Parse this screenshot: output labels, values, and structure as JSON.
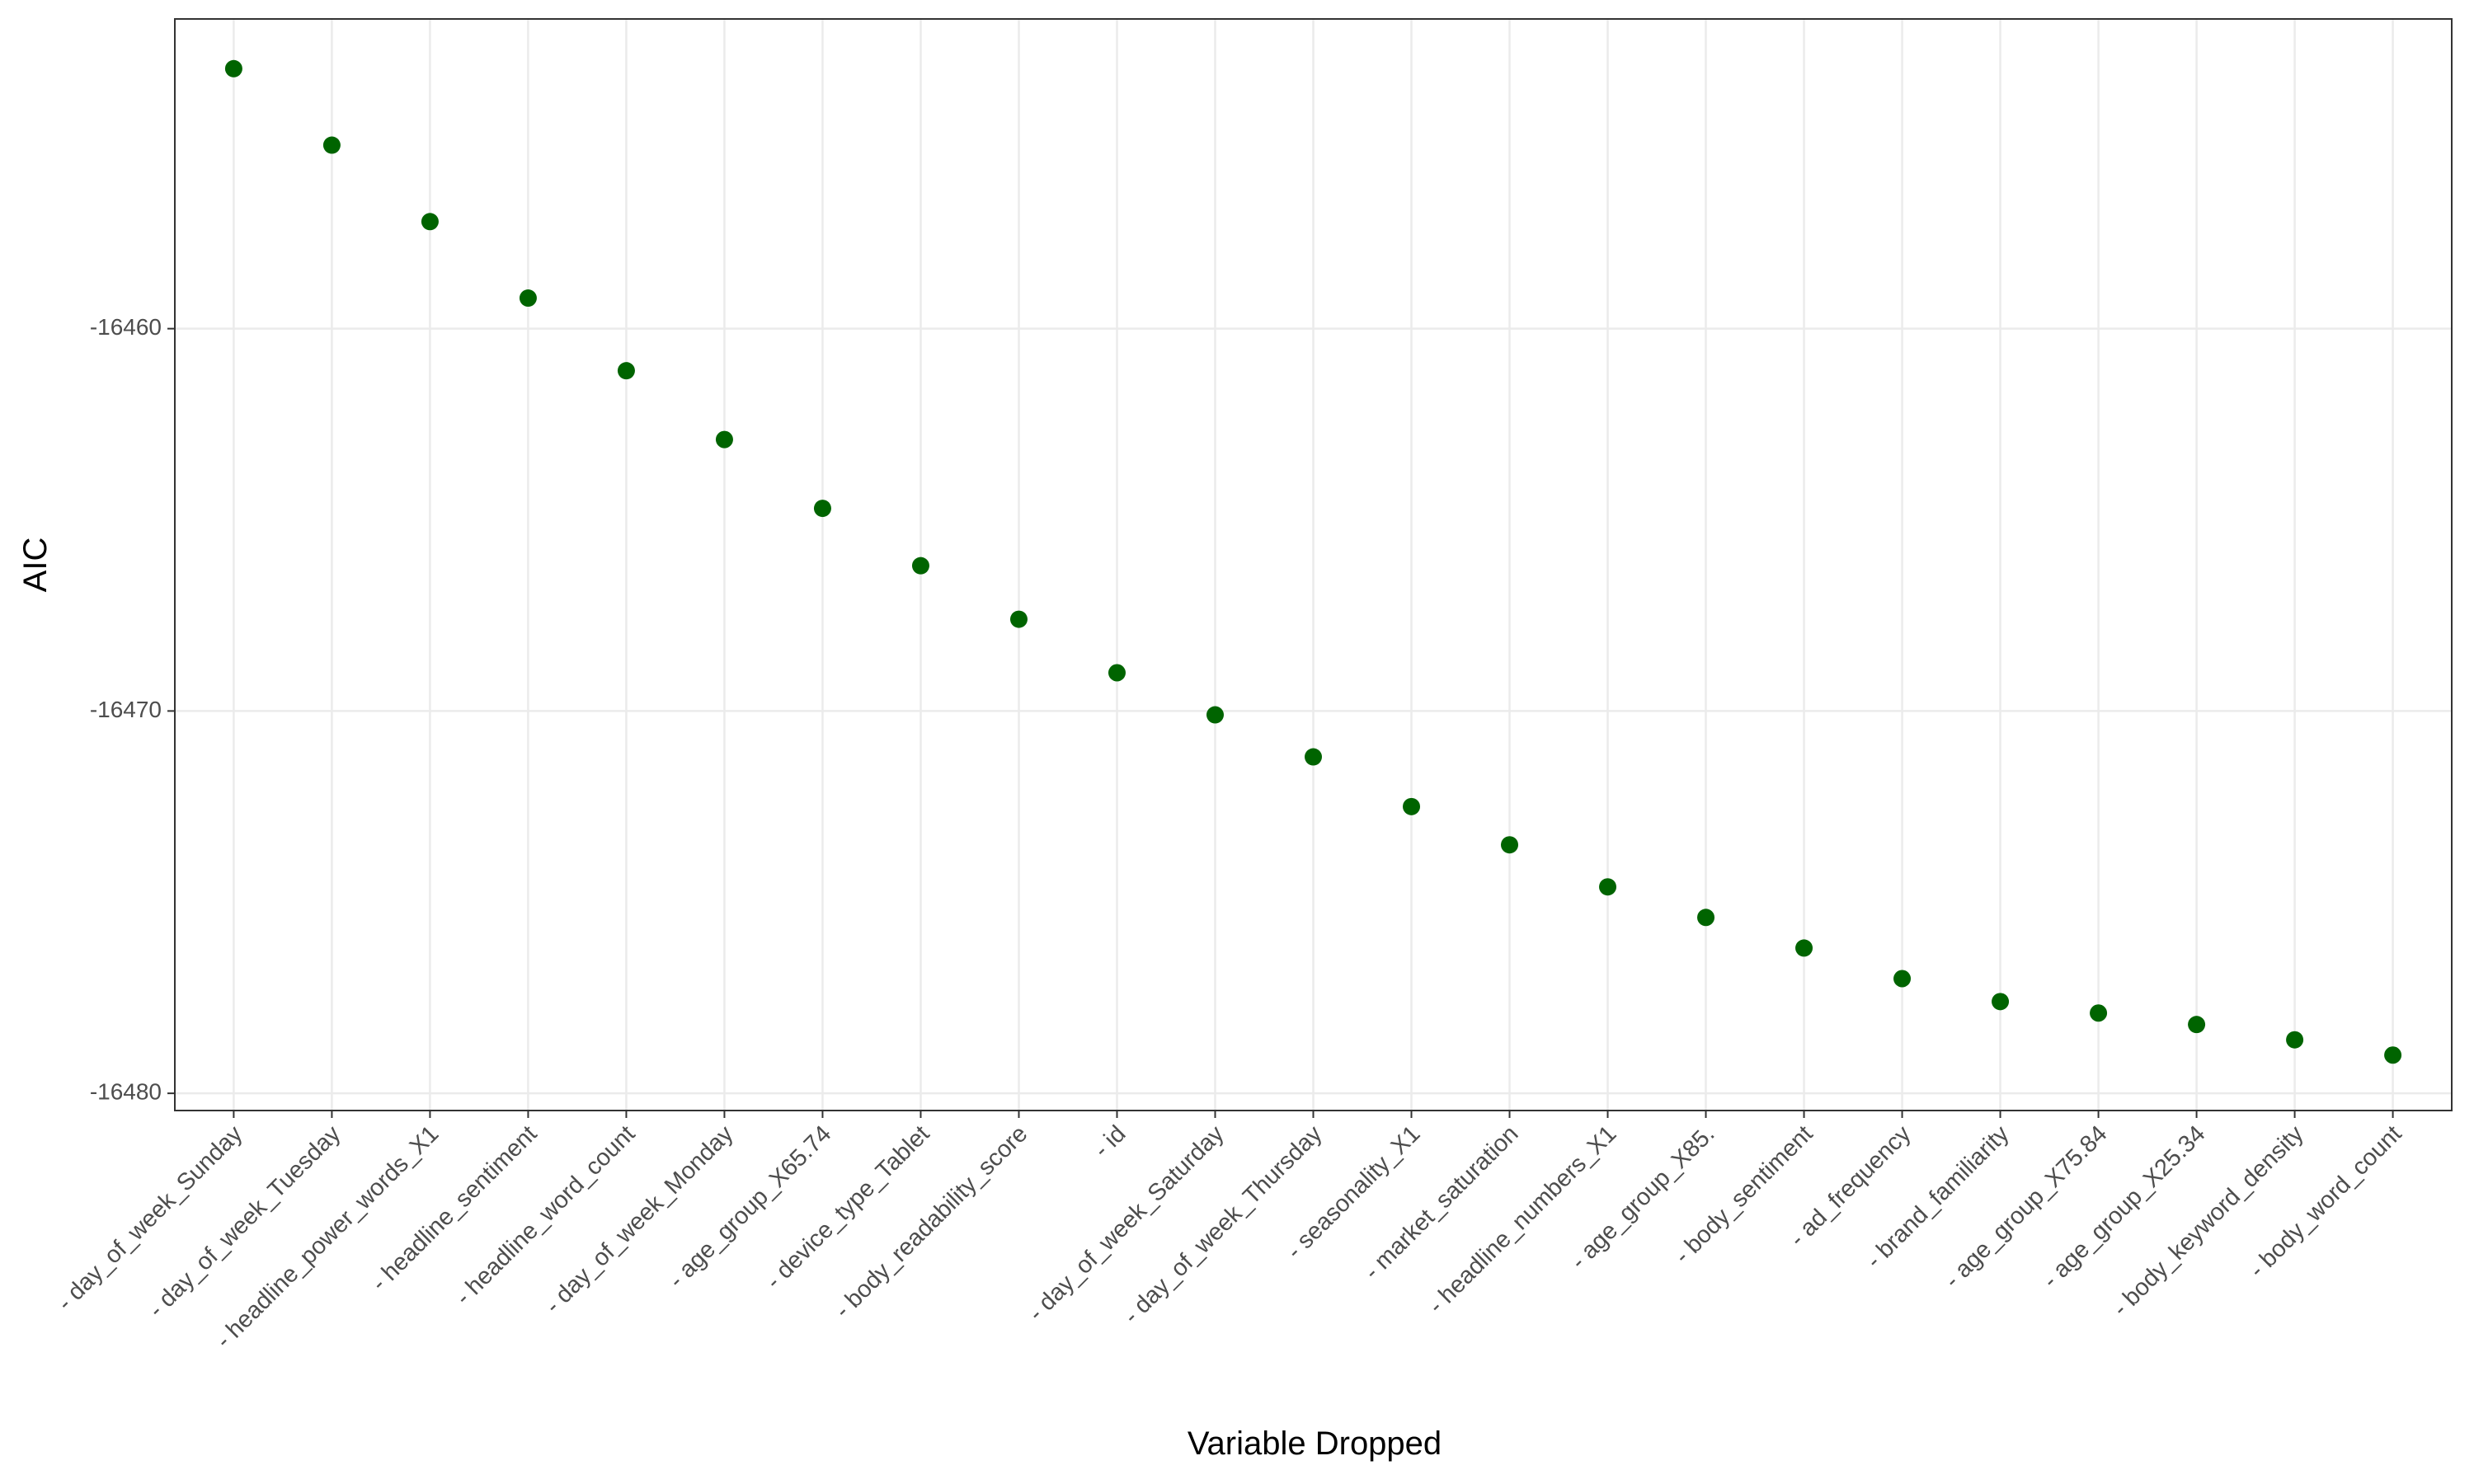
{
  "chart_data": {
    "type": "scatter",
    "x_label": "Variable Dropped",
    "y_label": "AIC",
    "categories": [
      "- day_of_week_Sunday",
      "- day_of_week_Tuesday",
      "- headline_power_words_X1",
      "- headline_sentiment",
      "- headline_word_count",
      "- day_of_week_Monday",
      "- age_group_X65.74",
      "- device_type_Tablet",
      "- body_readability_score",
      "- id",
      "- day_of_week_Saturday",
      "- day_of_week_Thursday",
      "- seasonality_X1",
      "- market_saturation",
      "- headline_numbers_X1",
      "- age_group_X85.",
      "- body_sentiment",
      "- ad_frequency",
      "- brand_familiarity",
      "- age_group_X75.84",
      "- age_group_X25.34",
      "- body_keyword_density",
      "- body_word_count"
    ],
    "values": [
      -16453.2,
      -16455.2,
      -16457.2,
      -16459.2,
      -16461.1,
      -16462.9,
      -16464.7,
      -16466.2,
      -16467.6,
      -16469.0,
      -16470.1,
      -16471.2,
      -16472.5,
      -16473.5,
      -16474.6,
      -16475.4,
      -16476.2,
      -16477.0,
      -16477.6,
      -16477.9,
      -16478.2,
      -16478.6,
      -16479.0
    ],
    "color": "#006400",
    "ylim": [
      -16480.45,
      -16451.9
    ],
    "yticks": [
      -16460,
      -16470,
      -16480
    ],
    "grid": true
  }
}
